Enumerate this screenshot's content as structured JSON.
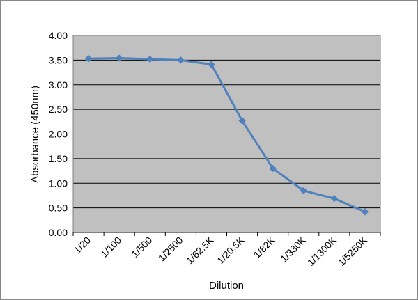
{
  "chart_data": {
    "type": "line",
    "title": "",
    "xlabel": "Dilution",
    "ylabel": "Absorbance (450nm)",
    "categories": [
      "1/20",
      "1/100",
      "1/500",
      "1/2500",
      "1/62.5K",
      "1/20.5K",
      "1/82K",
      "1/330K",
      "1/1300K",
      "1/5250K"
    ],
    "series": [
      {
        "values": [
          3.53,
          3.54,
          3.52,
          3.5,
          3.41,
          2.27,
          1.3,
          0.85,
          0.69,
          0.42
        ]
      }
    ],
    "ylim": [
      0,
      4
    ],
    "yticks": [
      "0.00",
      "0.50",
      "1.00",
      "1.50",
      "2.00",
      "2.50",
      "3.00",
      "3.50",
      "4.00"
    ],
    "grid": true,
    "colors": {
      "plot_background": "#c0c0c0",
      "line": "#4f81bd",
      "gridline": "#000000",
      "frame": "#808080"
    }
  }
}
